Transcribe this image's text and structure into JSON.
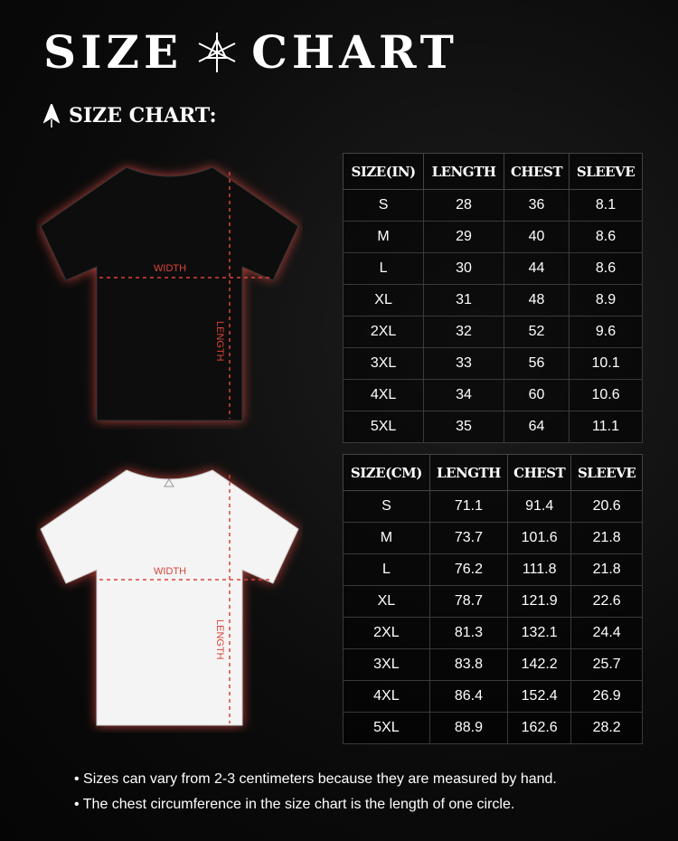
{
  "title": {
    "left": "SIZE",
    "right": "CHART",
    "emblem_icon": "star-sigil-icon"
  },
  "subtitle": {
    "label": "SIZE CHART:",
    "icon": "arrowhead-icon"
  },
  "shirt_labels": {
    "width": "WIDTH",
    "length": "LENGTH"
  },
  "colors": {
    "accent": "#c9433b",
    "background": "#0c0c0c"
  },
  "table_in": {
    "headers": [
      "SIZE(IN)",
      "LENGTH",
      "CHEST",
      "SLEEVE"
    ],
    "rows": [
      [
        "S",
        "28",
        "36",
        "8.1"
      ],
      [
        "M",
        "29",
        "40",
        "8.6"
      ],
      [
        "L",
        "30",
        "44",
        "8.6"
      ],
      [
        "XL",
        "31",
        "48",
        "8.9"
      ],
      [
        "2XL",
        "32",
        "52",
        "9.6"
      ],
      [
        "3XL",
        "33",
        "56",
        "10.1"
      ],
      [
        "4XL",
        "34",
        "60",
        "10.6"
      ],
      [
        "5XL",
        "35",
        "64",
        "11.1"
      ]
    ]
  },
  "table_cm": {
    "headers": [
      "SIZE(CM)",
      "LENGTH",
      "CHEST",
      "SLEEVE"
    ],
    "rows": [
      [
        "S",
        "71.1",
        "91.4",
        "20.6"
      ],
      [
        "M",
        "73.7",
        "101.6",
        "21.8"
      ],
      [
        "L",
        "76.2",
        "111.8",
        "21.8"
      ],
      [
        "XL",
        "78.7",
        "121.9",
        "22.6"
      ],
      [
        "2XL",
        "81.3",
        "132.1",
        "24.4"
      ],
      [
        "3XL",
        "83.8",
        "142.2",
        "25.7"
      ],
      [
        "4XL",
        "86.4",
        "152.4",
        "26.9"
      ],
      [
        "5XL",
        "88.9",
        "162.6",
        "28.2"
      ]
    ]
  },
  "notes": [
    "Sizes can vary from 2-3 centimeters because they are measured by hand.",
    "The chest circumference in the size chart is the length of one circle."
  ]
}
